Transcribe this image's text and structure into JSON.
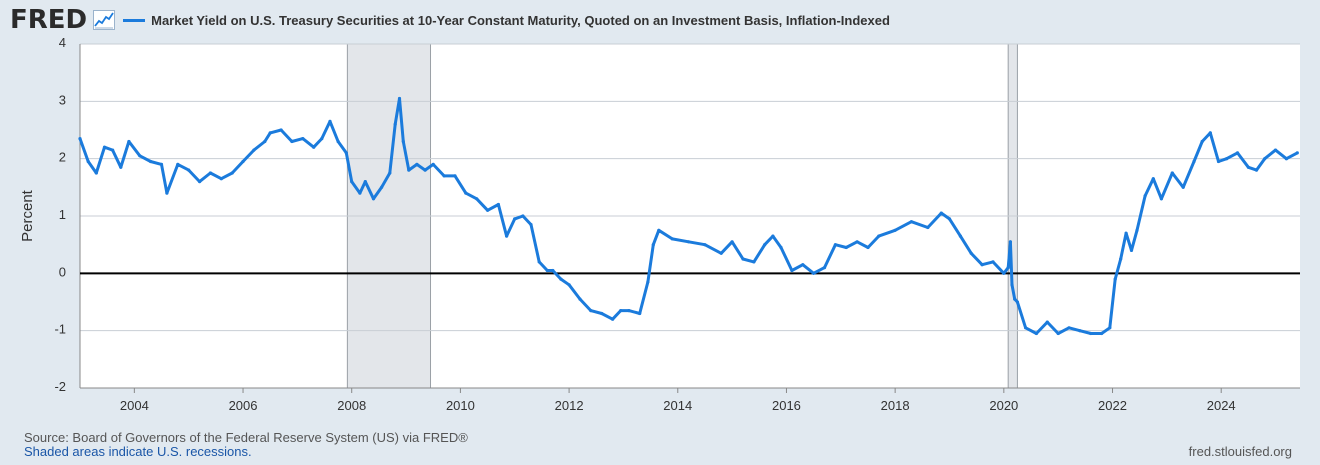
{
  "logo": {
    "text": "FRED",
    "icon": "chart-line-icon"
  },
  "colors": {
    "line": "#1b7bdc",
    "background": "#e1e9f0",
    "plot": "#ffffff",
    "grid": "#c8ced4",
    "recession": "#e3e6ea",
    "zero": "#000000"
  },
  "chart_data": {
    "type": "line",
    "title": "Market Yield on U.S. Treasury Securities at 10-Year Constant Maturity, Quoted on an Investment Basis, Inflation-Indexed",
    "ylabel": "Percent",
    "xlabel": "",
    "ylim": [
      -2,
      4
    ],
    "xlim": [
      2003.0,
      2025.45
    ],
    "yticks": [
      -2,
      -1,
      0,
      1,
      2,
      3,
      4
    ],
    "xticks": [
      2004,
      2006,
      2008,
      2010,
      2012,
      2014,
      2016,
      2018,
      2020,
      2022,
      2024
    ],
    "recessions": [
      [
        2007.92,
        2009.45
      ],
      [
        2020.08,
        2020.25
      ]
    ],
    "series": [
      {
        "name": "Market Yield on U.S. Treasury Securities at 10-Year Constant Maturity, Quoted on an Investment Basis, Inflation-Indexed",
        "x": [
          2003.0,
          2003.15,
          2003.3,
          2003.45,
          2003.6,
          2003.75,
          2003.9,
          2004.1,
          2004.3,
          2004.5,
          2004.6,
          2004.8,
          2005.0,
          2005.2,
          2005.4,
          2005.6,
          2005.8,
          2006.0,
          2006.2,
          2006.4,
          2006.5,
          2006.7,
          2006.9,
          2007.1,
          2007.3,
          2007.45,
          2007.6,
          2007.75,
          2007.9,
          2008.0,
          2008.15,
          2008.25,
          2008.4,
          2008.55,
          2008.7,
          2008.8,
          2008.88,
          2008.95,
          2009.05,
          2009.2,
          2009.35,
          2009.5,
          2009.7,
          2009.9,
          2010.1,
          2010.3,
          2010.5,
          2010.7,
          2010.85,
          2011.0,
          2011.15,
          2011.3,
          2011.45,
          2011.6,
          2011.7,
          2011.85,
          2012.0,
          2012.2,
          2012.4,
          2012.6,
          2012.8,
          2012.95,
          2013.1,
          2013.3,
          2013.45,
          2013.55,
          2013.65,
          2013.9,
          2014.2,
          2014.5,
          2014.8,
          2015.0,
          2015.2,
          2015.4,
          2015.6,
          2015.75,
          2015.9,
          2016.1,
          2016.3,
          2016.5,
          2016.7,
          2016.9,
          2017.1,
          2017.3,
          2017.5,
          2017.7,
          2018.0,
          2018.3,
          2018.6,
          2018.85,
          2019.0,
          2019.2,
          2019.4,
          2019.6,
          2019.8,
          2020.0,
          2020.08,
          2020.12,
          2020.15,
          2020.2,
          2020.25,
          2020.4,
          2020.6,
          2020.8,
          2021.0,
          2021.2,
          2021.4,
          2021.6,
          2021.8,
          2021.95,
          2022.05,
          2022.15,
          2022.25,
          2022.35,
          2022.45,
          2022.6,
          2022.75,
          2022.9,
          2023.1,
          2023.3,
          2023.5,
          2023.65,
          2023.8,
          2023.95,
          2024.1,
          2024.3,
          2024.5,
          2024.65,
          2024.8,
          2025.0,
          2025.2,
          2025.4
        ],
        "values": [
          2.35,
          1.95,
          1.75,
          2.2,
          2.15,
          1.85,
          2.3,
          2.05,
          1.95,
          1.9,
          1.4,
          1.9,
          1.8,
          1.6,
          1.75,
          1.65,
          1.75,
          1.95,
          2.15,
          2.3,
          2.45,
          2.5,
          2.3,
          2.35,
          2.2,
          2.35,
          2.65,
          2.3,
          2.1,
          1.6,
          1.4,
          1.6,
          1.3,
          1.5,
          1.75,
          2.6,
          3.05,
          2.3,
          1.8,
          1.9,
          1.8,
          1.9,
          1.7,
          1.7,
          1.4,
          1.3,
          1.1,
          1.2,
          0.65,
          0.95,
          1.0,
          0.85,
          0.2,
          0.05,
          0.05,
          -0.1,
          -0.2,
          -0.45,
          -0.65,
          -0.7,
          -0.8,
          -0.65,
          -0.65,
          -0.7,
          -0.15,
          0.5,
          0.75,
          0.6,
          0.55,
          0.5,
          0.35,
          0.55,
          0.25,
          0.2,
          0.5,
          0.65,
          0.45,
          0.05,
          0.15,
          0.0,
          0.1,
          0.5,
          0.45,
          0.55,
          0.45,
          0.65,
          0.75,
          0.9,
          0.8,
          1.05,
          0.95,
          0.65,
          0.35,
          0.15,
          0.2,
          0.0,
          0.1,
          0.55,
          -0.2,
          -0.45,
          -0.5,
          -0.95,
          -1.05,
          -0.85,
          -1.05,
          -0.95,
          -1.0,
          -1.05,
          -1.05,
          -0.95,
          -0.1,
          0.25,
          0.7,
          0.4,
          0.75,
          1.35,
          1.65,
          1.3,
          1.75,
          1.5,
          1.95,
          2.3,
          2.45,
          1.95,
          2.0,
          2.1,
          1.85,
          1.8,
          2.0,
          2.15,
          2.0,
          2.1
        ]
      }
    ]
  },
  "footer": {
    "source": "Source: Board of Governors of the Federal Reserve System (US) via FRED®",
    "recession_note": "Shaded areas indicate U.S. recessions.",
    "site": "fred.stlouisfed.org"
  }
}
